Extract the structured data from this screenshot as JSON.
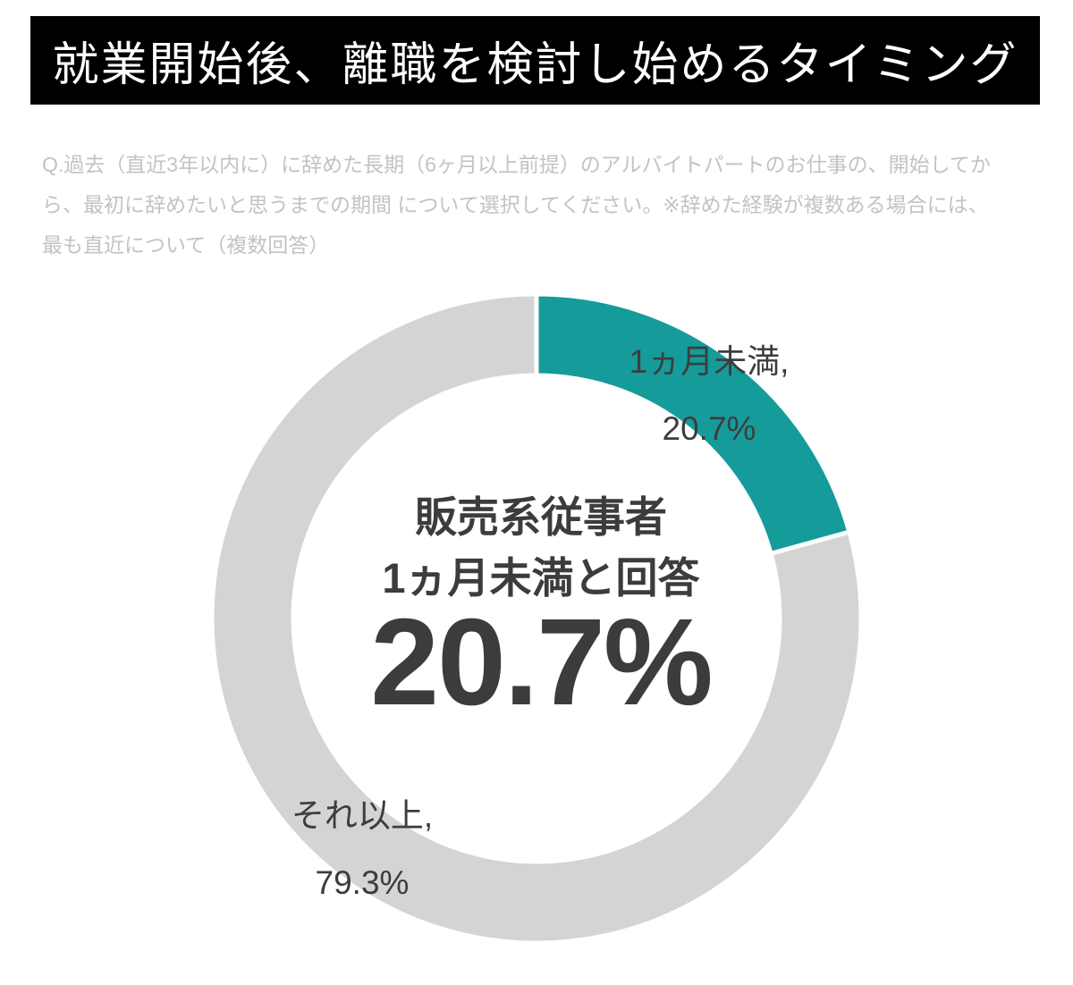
{
  "header": {
    "title": "就業開始後、離職を検討し始めるタイミング",
    "bg_color": "#000000",
    "text_color": "#ffffff"
  },
  "question": {
    "lines": [
      "Q.過去（直近3年以内に）に辞めた長期（6ヶ月以上前提）のアルバイトパートのお仕事の、開始してか",
      "ら、最初に辞めたいと思うまでの期間 について選択してください。※辞めた経験が複数ある場合には、",
      "最も直近について（複数回答）"
    ]
  },
  "chart_data": {
    "type": "pie",
    "subtype": "donut",
    "title": "就業開始後、離職を検討し始めるタイミング",
    "categories": [
      "1ヵ月未満",
      "それ以上"
    ],
    "values": [
      20.7,
      79.3
    ],
    "unit": "%",
    "colors": [
      "#169b9b",
      "#d4d4d4"
    ],
    "start_angle_deg": 0,
    "direction": "clockwise",
    "inner_radius_ratio": 0.75,
    "segment_gap_color": "#ffffff",
    "legend_position": "none",
    "labels": [
      {
        "name": "1ヵ月未満,",
        "value": "20.7%"
      },
      {
        "name": "それ以上,",
        "value": "79.3%"
      }
    ],
    "center_text": {
      "line1": "販売系従事者",
      "line2": "1ヵ月未満と回答",
      "value": "20.7%"
    }
  }
}
